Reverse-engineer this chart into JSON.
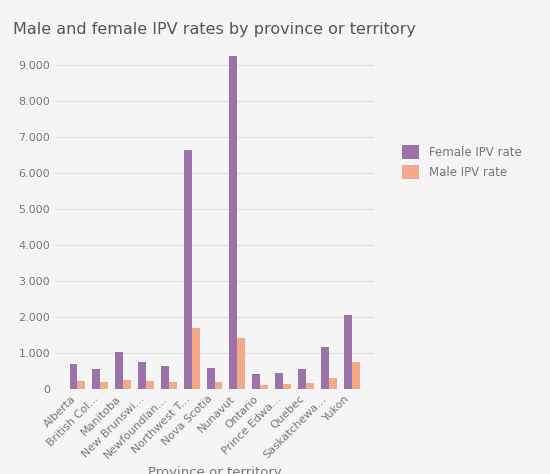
{
  "title": "Male and female IPV rates by province or territory",
  "xlabel": "Province or territory",
  "ylabel": "",
  "categories": [
    "Alberta",
    "British Col...",
    "Manitoba",
    "New Brunswi...",
    "Newfoundlan...",
    "Northwest T...",
    "Nova Scotia",
    "Nunavut",
    "Ontario",
    "Prince Edwa...",
    "Quebec",
    "Saskatchewa...",
    "Yukon"
  ],
  "female_values": [
    680,
    560,
    1010,
    730,
    640,
    6650,
    580,
    9250,
    410,
    450,
    540,
    1170,
    2050
  ],
  "male_values": [
    200,
    175,
    250,
    220,
    190,
    1700,
    190,
    1420,
    110,
    120,
    170,
    310,
    750
  ],
  "female_color": "#9B72AA",
  "male_color": "#F4A98A",
  "background_color": "#f5f5f5",
  "legend_female": "Female IPV rate",
  "legend_male": "Male IPV rate",
  "ylim": [
    0,
    9500
  ],
  "yticks": [
    0,
    1000,
    2000,
    3000,
    4000,
    5000,
    6000,
    7000,
    8000,
    9000
  ],
  "title_fontsize": 11.5,
  "axis_label_fontsize": 9.5,
  "tick_fontsize": 8
}
